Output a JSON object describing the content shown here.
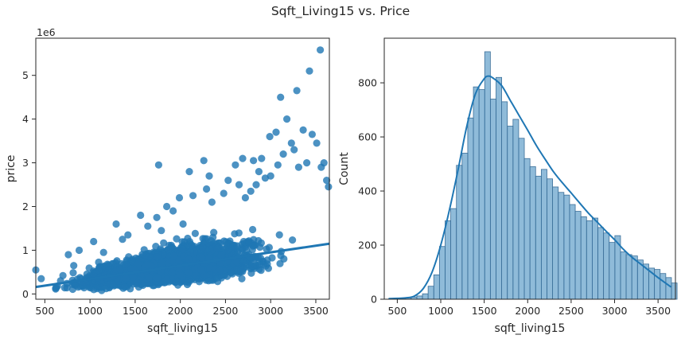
{
  "figure_title": "Sqft_Living15 vs. Price",
  "colors": {
    "main": "#1f77b4",
    "axes": "#262626",
    "background": "#ffffff"
  },
  "chart_data": [
    {
      "type": "scatter",
      "title": "",
      "xlabel": "sqft_living15",
      "ylabel": "price",
      "offset_text": "1e6",
      "xlim": [
        400,
        3650
      ],
      "ylim": [
        -0.12,
        5.85
      ],
      "xticks": [
        500,
        1000,
        1500,
        2000,
        2500,
        3000,
        3500
      ],
      "xtick_labels": [
        "500",
        "1000",
        "1500",
        "2000",
        "2500",
        "3000",
        "3500"
      ],
      "yticks": [
        0,
        1,
        2,
        3,
        4,
        5
      ],
      "ytick_labels": [
        "0",
        "1",
        "2",
        "3",
        "4",
        "5"
      ],
      "regression_line": {
        "x": [
          400,
          3650
        ],
        "y": [
          0.16,
          1.15
        ]
      },
      "outlier_points": {
        "x": [
          400,
          460,
          640,
          700,
          760,
          820,
          880,
          1040,
          1150,
          1290,
          1360,
          1420,
          1560,
          1640,
          1740,
          1760,
          1790,
          1850,
          1920,
          1990,
          2030,
          2100,
          2140,
          2260,
          2290,
          2320,
          2350,
          2480,
          2530,
          2610,
          2650,
          2690,
          2720,
          2780,
          2810,
          2840,
          2870,
          2900,
          2940,
          2990,
          3000,
          3060,
          3080,
          3110,
          3140,
          3180,
          3230,
          3260,
          3290,
          3310,
          3360,
          3400,
          3430,
          3460,
          3510,
          3550,
          3560,
          3590,
          3620,
          3640
        ],
        "y": [
          0.55,
          0.35,
          0.18,
          0.42,
          0.9,
          0.65,
          1.0,
          1.2,
          0.95,
          1.6,
          1.25,
          1.35,
          1.8,
          1.55,
          1.75,
          2.95,
          1.45,
          2.0,
          1.9,
          2.2,
          1.6,
          2.8,
          2.25,
          3.05,
          2.4,
          2.7,
          2.1,
          2.3,
          2.6,
          2.95,
          2.5,
          3.1,
          2.2,
          2.35,
          3.05,
          2.5,
          2.8,
          3.1,
          2.65,
          3.6,
          2.7,
          3.7,
          2.95,
          4.5,
          3.2,
          4.0,
          3.45,
          3.3,
          4.65,
          2.9,
          3.75,
          3.0,
          5.1,
          3.65,
          3.45,
          5.58,
          2.9,
          3.0,
          2.6,
          2.45
        ]
      }
    },
    {
      "type": "histogram",
      "title": "",
      "xlabel": "sqft_living15",
      "ylabel": "Count",
      "xlim": [
        350,
        3700
      ],
      "ylim": [
        0,
        965
      ],
      "xticks": [
        500,
        1000,
        1500,
        2000,
        2500,
        3000,
        3500
      ],
      "xtick_labels": [
        "500",
        "1000",
        "1500",
        "2000",
        "2500",
        "3000",
        "3500"
      ],
      "yticks": [
        0,
        200,
        400,
        600,
        800
      ],
      "ytick_labels": [
        "0",
        "200",
        "400",
        "600",
        "800"
      ],
      "bin_start": 399,
      "bin_width": 65.1,
      "counts": [
        1,
        2,
        3,
        5,
        8,
        12,
        20,
        48,
        90,
        195,
        290,
        335,
        495,
        540,
        670,
        785,
        775,
        915,
        740,
        820,
        730,
        640,
        665,
        595,
        520,
        490,
        455,
        480,
        445,
        415,
        395,
        385,
        350,
        325,
        305,
        290,
        300,
        265,
        245,
        210,
        235,
        175,
        165,
        160,
        145,
        130,
        115,
        110,
        95,
        80,
        60
      ],
      "kde": {
        "x": [
          400,
          600,
          700,
          800,
          900,
          1000,
          1100,
          1200,
          1300,
          1400,
          1500,
          1550,
          1600,
          1700,
          1800,
          1900,
          2000,
          2100,
          2200,
          2300,
          2400,
          2500,
          2600,
          2700,
          2800,
          2900,
          3000,
          3100,
          3200,
          3300,
          3400,
          3500,
          3650
        ],
        "y": [
          2,
          5,
          12,
          40,
          100,
          200,
          330,
          480,
          640,
          760,
          815,
          825,
          818,
          790,
          735,
          680,
          625,
          568,
          518,
          470,
          430,
          393,
          355,
          318,
          285,
          252,
          220,
          185,
          155,
          130,
          105,
          80,
          45
        ]
      }
    }
  ]
}
